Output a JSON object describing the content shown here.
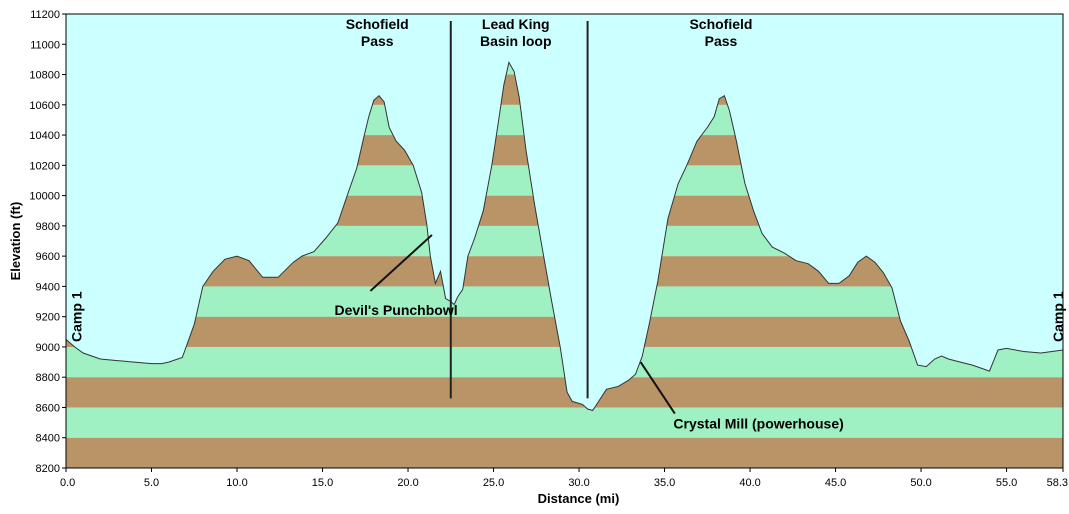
{
  "chart_data": {
    "type": "area",
    "xlabel": "Distance   (mi)",
    "ylabel": "Elevation (ft)",
    "xlim": [
      0,
      58.3
    ],
    "ylim": [
      8200,
      11200
    ],
    "x_ticks": [
      "0.0",
      "5.0",
      "10.0",
      "15.0",
      "20.0",
      "25.0",
      "30.0",
      "35.0",
      "40.0",
      "45.0",
      "50.0",
      "55.0",
      "58.3"
    ],
    "x_tick_values": [
      0,
      5,
      10,
      15,
      20,
      25,
      30,
      35,
      40,
      45,
      50,
      55,
      58.3
    ],
    "y_ticks": [
      "8200",
      "8400",
      "8600",
      "8800",
      "9000",
      "9200",
      "9400",
      "9600",
      "9800",
      "10000",
      "10200",
      "10400",
      "10600",
      "10800",
      "11000",
      "11200"
    ],
    "y_tick_values": [
      8200,
      8400,
      8600,
      8800,
      9000,
      9200,
      9400,
      9600,
      9800,
      10000,
      10200,
      10400,
      10600,
      10800,
      11000,
      11200
    ],
    "band_colors": [
      "#b89466",
      "#9ff0c2"
    ],
    "background_color": "#ccffff",
    "profile": {
      "x": [
        0,
        0.5,
        1,
        2,
        3,
        4,
        5,
        5.6,
        6,
        6.8,
        7.5,
        8,
        8.6,
        9.3,
        10,
        10.7,
        11.5,
        12.4,
        13.3,
        13.8,
        14.5,
        15.2,
        15.9,
        16.5,
        17,
        17.4,
        17.7,
        18,
        18.3,
        18.6,
        18.9,
        19.3,
        19.8,
        20.3,
        20.8,
        21.1,
        21.3,
        21.6,
        21.9,
        22.2,
        22.5,
        22.7,
        22.9,
        23.2,
        23.5,
        23.9,
        24.4,
        24.9,
        25.3,
        25.6,
        25.9,
        26.2,
        26.5,
        26.9,
        27.4,
        27.9,
        28.4,
        28.9,
        29.3,
        29.6,
        29.9,
        30.2,
        30.5,
        30.8,
        31.2,
        31.6,
        32.3,
        32.9,
        33.3,
        33.7,
        34.1,
        34.6,
        35.2,
        35.8,
        36.3,
        36.9,
        37.5,
        37.9,
        38.2,
        38.5,
        38.8,
        39.2,
        39.7,
        40.2,
        40.7,
        41.3,
        42,
        42.7,
        43.4,
        44,
        44.6,
        45.2,
        45.8,
        46.3,
        46.8,
        47.3,
        47.8,
        48.3,
        48.8,
        49.3,
        49.8,
        50.3,
        50.8,
        51.2,
        51.6,
        52.3,
        53,
        54,
        54.5,
        55,
        56,
        57,
        58.3
      ],
      "y": [
        9050,
        9000,
        8960,
        8920,
        8910,
        8900,
        8890,
        8890,
        8900,
        8930,
        9150,
        9400,
        9500,
        9580,
        9600,
        9570,
        9460,
        9460,
        9560,
        9600,
        9630,
        9720,
        9820,
        10020,
        10180,
        10380,
        10520,
        10630,
        10660,
        10620,
        10450,
        10360,
        10300,
        10200,
        10020,
        9810,
        9600,
        9420,
        9500,
        9320,
        9300,
        9280,
        9330,
        9380,
        9600,
        9720,
        9900,
        10200,
        10500,
        10730,
        10880,
        10820,
        10650,
        10300,
        9940,
        9620,
        9300,
        9000,
        8700,
        8640,
        8630,
        8620,
        8590,
        8580,
        8650,
        8720,
        8740,
        8780,
        8820,
        8940,
        9150,
        9430,
        9850,
        10080,
        10200,
        10360,
        10450,
        10520,
        10640,
        10660,
        10560,
        10360,
        10080,
        9900,
        9750,
        9660,
        9620,
        9570,
        9550,
        9500,
        9420,
        9420,
        9470,
        9560,
        9600,
        9560,
        9490,
        9390,
        9170,
        9040,
        8880,
        8870,
        8920,
        8940,
        8920,
        8900,
        8880,
        8840,
        8980,
        8990,
        8970,
        8960,
        8980
      ]
    },
    "annotations": [
      {
        "text": [
          "Schofield",
          "Pass"
        ],
        "x": 18.2,
        "y": [
          11100,
          10990
        ]
      },
      {
        "text": [
          "Lead King",
          "Basin loop"
        ],
        "x": 26.3,
        "y": [
          11100,
          10990
        ]
      },
      {
        "text": [
          "Schofield",
          "Pass"
        ],
        "x": 38.3,
        "y": [
          11100,
          10990
        ]
      },
      {
        "text": [
          "Devil's Punchbowl"
        ],
        "x": 19.3,
        "y": [
          9210
        ]
      },
      {
        "text": [
          "Crystal Mill (powerhouse)"
        ],
        "x": 40.5,
        "y": [
          8460
        ]
      }
    ],
    "vertical_markers": [
      22.5,
      30.5
    ],
    "callout_lines": [
      {
        "from": [
          21.4,
          9740
        ],
        "to": [
          17.8,
          9370
        ]
      },
      {
        "from": [
          33.6,
          8900
        ],
        "to": [
          35.6,
          8560
        ]
      }
    ],
    "endpoint_labels": [
      {
        "text": "Camp 1",
        "x": 0.2,
        "y": 9200
      },
      {
        "text": "Camp 1",
        "x": 57.6,
        "y": 9200
      }
    ]
  }
}
